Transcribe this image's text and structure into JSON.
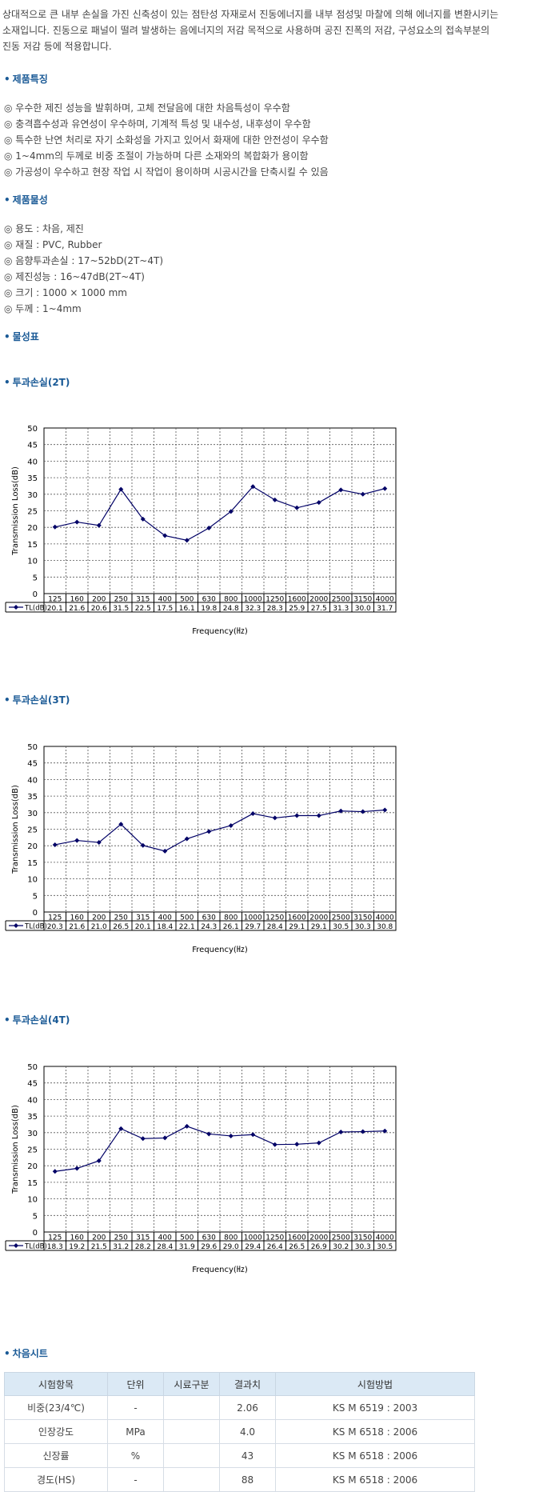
{
  "intro": [
    "상대적으로 큰 내부 손실을 가진 신축성이 있는 점탄성 자재로서 진동에너지를 내부 점성및 마찰에 의해 에너지를 변환시키는",
    "소재입니다. 진동으로 패널이 떨려 발생하는 음에너지의 저감 목적으로 사용하며 공진 진폭의 저감, 구성요소의 접속부분의",
    "진동 저감 등에 적용합니다."
  ],
  "bullet": "•",
  "features": {
    "title": "제품특징",
    "items": [
      "◎ 우수한 제진 성능을 발휘하며, 고체 전달음에 대한 차음특성이 우수함",
      "◎ 충격흡수성과 유연성이 우수하며, 기계적 특성 및 내수성, 내후성이 우수함",
      "◎ 특수한 난연 처리로 자기 소화성을 가지고 있어서 화재에 대한 안전성이 우수함",
      "◎ 1~4mm의 두께로 비중 조절이 가능하며 다른 소재와의 복합화가 용이함",
      "◎ 가공성이 우수하고 현장 작업 시 작업이 용이하며 시공시간을 단축시킬 수 있음"
    ]
  },
  "properties": {
    "title": "제품물성",
    "items": [
      "◎ 용도 : 차음, 제진",
      "◎ 재질 : PVC, Rubber",
      "◎ 음향투과손실 : 17~52bD(2T~4T)",
      "◎ 제진성능 : 16~47dB(2T~4T)",
      "◎ 크기 : 1000 × 1000 mm",
      "◎ 두께 : 1~4mm"
    ]
  },
  "spec_title": "물성표",
  "chart_data": [
    {
      "type": "line",
      "section_title": "투과손실(2T)",
      "ylabel": "Transmission Loss(dB)",
      "xlabel": "Frequency(㎐)",
      "series_name": "TL(dB)",
      "ylim": [
        0,
        50
      ],
      "yticks": [
        0,
        5,
        10,
        15,
        20,
        25,
        30,
        35,
        40,
        45,
        50
      ],
      "categories": [
        "125",
        "160",
        "200",
        "250",
        "315",
        "400",
        "500",
        "630",
        "800",
        "1000",
        "1250",
        "1600",
        "2000",
        "2500",
        "3150",
        "4000"
      ],
      "values": [
        "20.1",
        "21.6",
        "20.6",
        "31.5",
        "22.5",
        "17.5",
        "16.1",
        "19.8",
        "24.8",
        "32.3",
        "28.3",
        "25.9",
        "27.5",
        "31.3",
        "30.0",
        "31.7"
      ],
      "grid": true
    },
    {
      "type": "line",
      "section_title": "투과손실(3T)",
      "ylabel": "Transmission Loss(dB)",
      "xlabel": "Frequency(㎐)",
      "series_name": "TL(dB)",
      "ylim": [
        0,
        50
      ],
      "yticks": [
        0,
        5,
        10,
        15,
        20,
        25,
        30,
        35,
        40,
        45,
        50
      ],
      "categories": [
        "125",
        "160",
        "200",
        "250",
        "315",
        "400",
        "500",
        "630",
        "800",
        "1000",
        "1250",
        "1600",
        "2000",
        "2500",
        "3150",
        "4000"
      ],
      "values": [
        "20.3",
        "21.6",
        "21.0",
        "26.5",
        "20.1",
        "18.4",
        "22.1",
        "24.3",
        "26.1",
        "29.7",
        "28.4",
        "29.1",
        "29.1",
        "30.5",
        "30.3",
        "30.8"
      ],
      "grid": true
    },
    {
      "type": "line",
      "section_title": "투과손실(4T)",
      "ylabel": "Transmission Loss(dB)",
      "xlabel": "Frequency(㎐)",
      "series_name": "TL(dB)",
      "ylim": [
        0,
        50
      ],
      "yticks": [
        0,
        5,
        10,
        15,
        20,
        25,
        30,
        35,
        40,
        45,
        50
      ],
      "categories": [
        "125",
        "160",
        "200",
        "250",
        "315",
        "400",
        "500",
        "630",
        "800",
        "1000",
        "1250",
        "1600",
        "2000",
        "2500",
        "3150",
        "4000"
      ],
      "values": [
        "18.3",
        "19.2",
        "21.5",
        "31.2",
        "28.2",
        "28.4",
        "31.9",
        "29.6",
        "29.0",
        "29.4",
        "26.4",
        "26.5",
        "26.9",
        "30.2",
        "30.3",
        "30.5"
      ],
      "grid": true
    }
  ],
  "sheet": {
    "title": "차음시트",
    "headers": [
      "시험항목",
      "단위",
      "시료구분",
      "결과치",
      "시험방법"
    ],
    "rows": [
      [
        "비중(23/4℃)",
        "-",
        "",
        "2.06",
        "KS M 6519 : 2003"
      ],
      [
        "인장강도",
        "MPa",
        "",
        "4.0",
        "KS M 6518 : 2006"
      ],
      [
        "신장률",
        "%",
        "",
        "43",
        "KS M 6518 : 2006"
      ],
      [
        "경도(HS)",
        "-",
        "",
        "88",
        "KS M 6518 : 2006"
      ]
    ]
  }
}
